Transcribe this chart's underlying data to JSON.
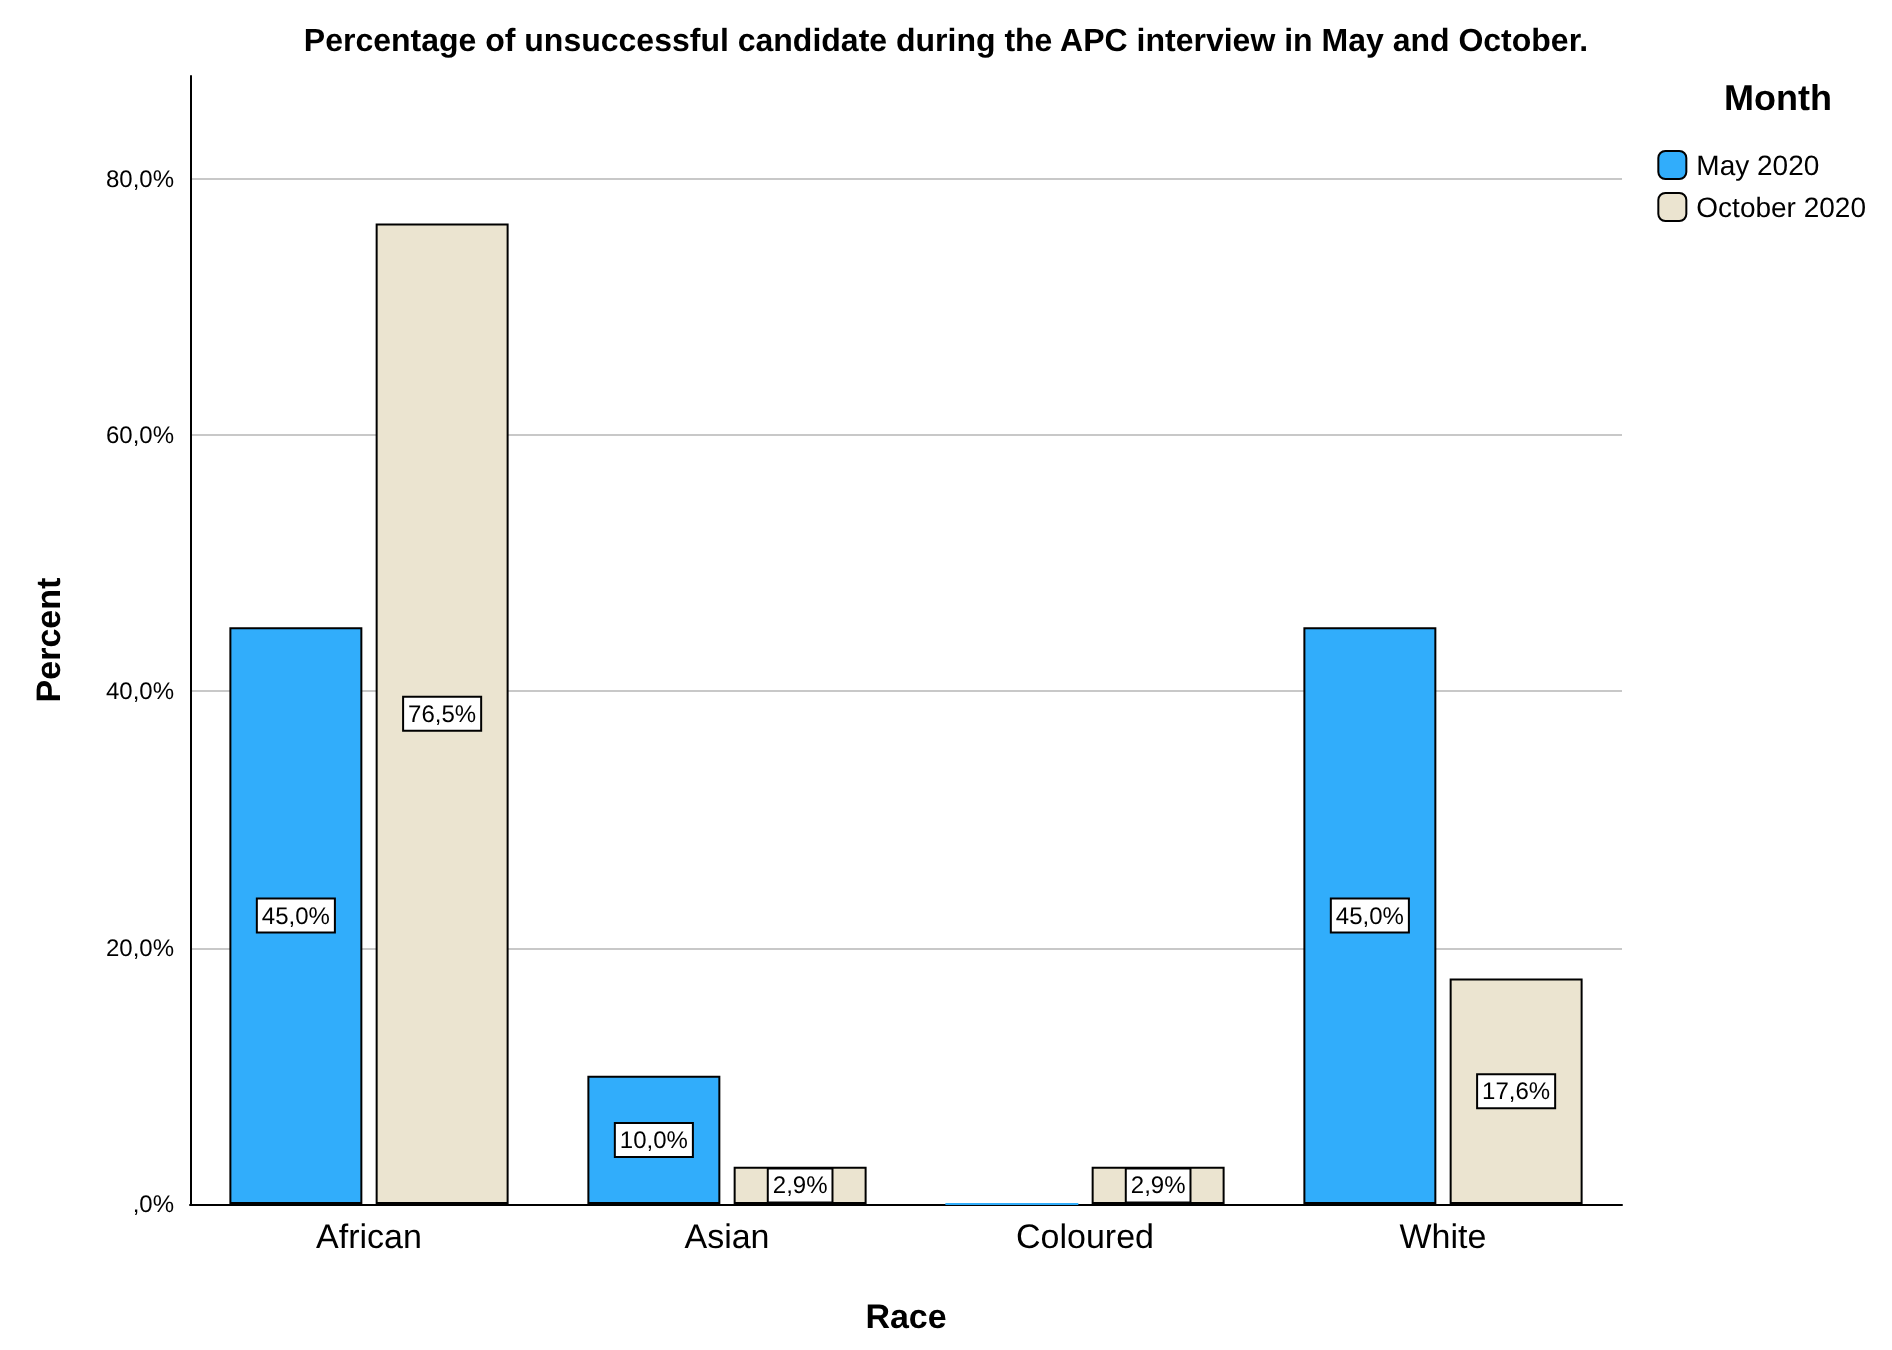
{
  "chart_data": {
    "type": "bar",
    "title": "Percentage of unsuccessful candidate during the APC interview in May and October.",
    "xlabel": "Race",
    "ylabel": "Percent",
    "legend_title": "Month",
    "categories": [
      "African",
      "Asian",
      "Coloured",
      "White"
    ],
    "series": [
      {
        "name": "May 2020",
        "color": "#31adfb",
        "values": [
          45.0,
          10.0,
          0,
          45.0
        ],
        "value_labels": [
          "45,0%",
          "10,0%",
          null,
          "45,0%"
        ]
      },
      {
        "name": "October 2020",
        "color": "#ebe4d0",
        "values": [
          76.5,
          2.9,
          2.9,
          17.6
        ],
        "value_labels": [
          "76,5%",
          "2,9%",
          "2,9%",
          "17,6%"
        ]
      }
    ],
    "ylim": [
      0,
      88
    ],
    "yticks": [
      {
        "value": 0,
        "label": ",0%"
      },
      {
        "value": 20,
        "label": "20,0%"
      },
      {
        "value": 40,
        "label": "40,0%"
      },
      {
        "value": 60,
        "label": "60,0%"
      },
      {
        "value": 80,
        "label": "80,0%"
      }
    ],
    "grid": "y",
    "legend": "top right"
  }
}
